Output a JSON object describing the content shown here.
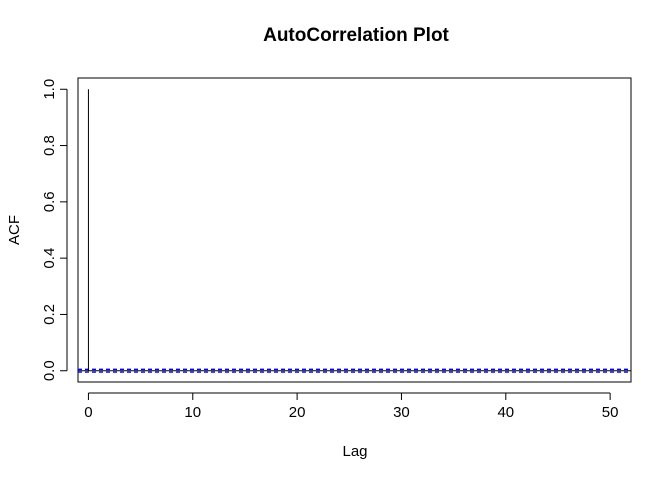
{
  "chart_data": {
    "type": "bar",
    "title": "AutoCorrelation Plot",
    "xlabel": "Lag",
    "ylabel": "ACF",
    "xlim": [
      -1,
      52
    ],
    "ylim": [
      -0.04,
      1.04
    ],
    "x_ticks": [
      0,
      10,
      20,
      30,
      40,
      50
    ],
    "x_tick_labels": [
      "0",
      "10",
      "20",
      "30",
      "40",
      "50"
    ],
    "y_ticks": [
      0.0,
      0.2,
      0.4,
      0.6,
      0.8,
      1.0
    ],
    "y_tick_labels": [
      "0.0",
      "0.2",
      "0.4",
      "0.6",
      "0.8",
      "1.0"
    ],
    "lags": [
      0
    ],
    "acf": [
      1.0
    ],
    "confidence_bounds": [
      0.005,
      -0.005
    ],
    "zero_line_color": "#000000",
    "bound_line_color": "#0000FF",
    "grid": false
  }
}
